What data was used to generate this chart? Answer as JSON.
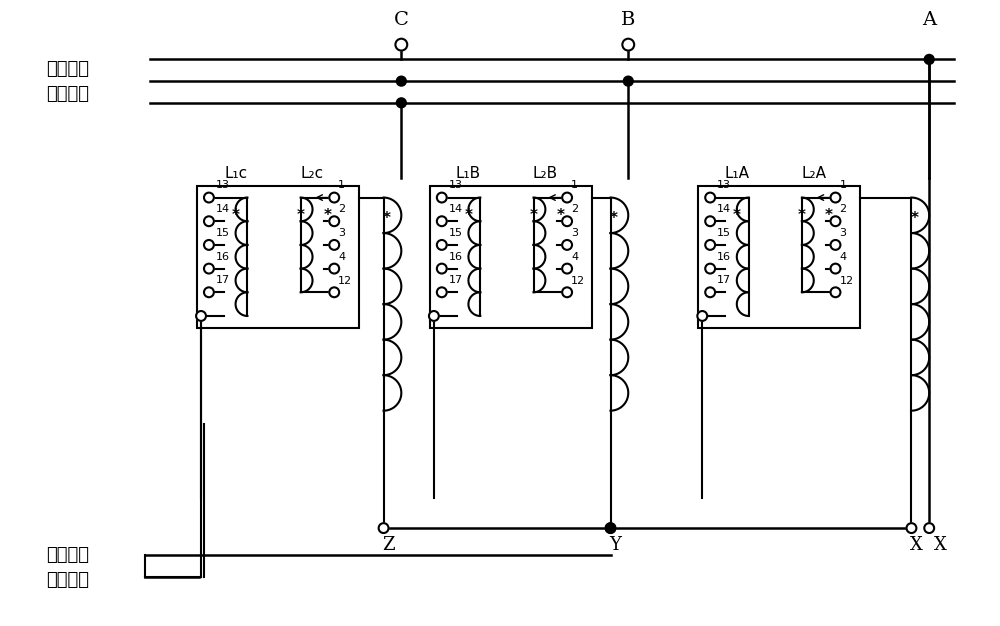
{
  "background_color": "#ffffff",
  "phases": [
    "C",
    "B",
    "A"
  ],
  "left_label_top": "输出至整\n流变压器",
  "left_label_bottom": "输出至整\n流变压器",
  "coil_labels": [
    [
      "L₁c",
      "L₂c"
    ],
    [
      "L₁B",
      "L₂B"
    ],
    [
      "L₁A",
      "L₂A"
    ]
  ],
  "xyz_labels": [
    "Z",
    "Y",
    "X"
  ]
}
